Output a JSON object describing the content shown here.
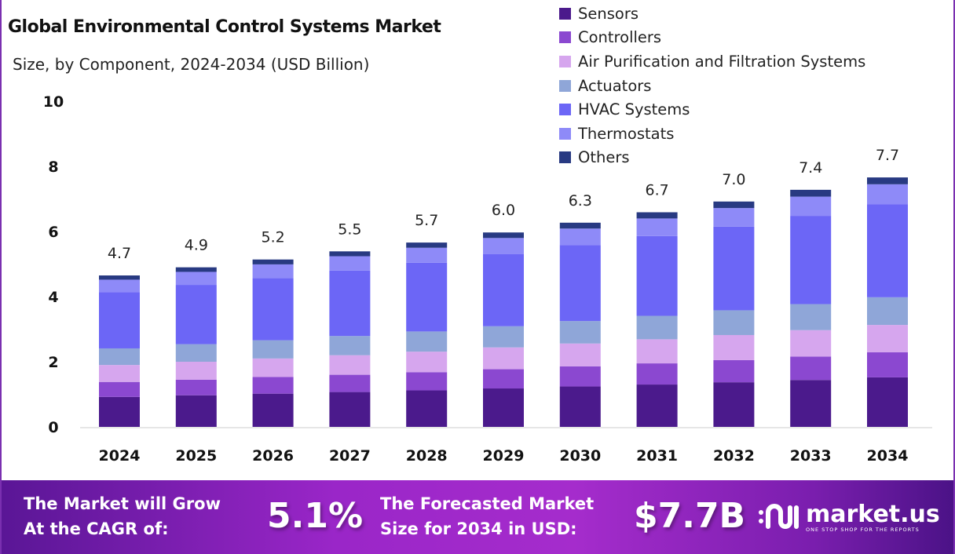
{
  "chart_data": {
    "type": "bar",
    "stacked": true,
    "title": "Global Environmental Control Systems Market",
    "subtitle": "Size, by Component, 2024-2034 (USD Billion)",
    "xlabel": "",
    "ylabel": "",
    "ylim": [
      0,
      10
    ],
    "yticks": [
      0,
      2,
      4,
      6,
      8,
      10
    ],
    "grid": false,
    "legend_position": "top-right",
    "categories": [
      "2024",
      "2025",
      "2026",
      "2027",
      "2028",
      "2029",
      "2030",
      "2031",
      "2032",
      "2033",
      "2034"
    ],
    "totals": [
      "4.7",
      "4.9",
      "5.2",
      "5.5",
      "5.7",
      "6.0",
      "6.3",
      "6.7",
      "7.0",
      "7.4",
      "7.7"
    ],
    "series": [
      {
        "name": "Sensors",
        "color": "#4b1a8c",
        "values": [
          0.92,
          0.97,
          1.02,
          1.07,
          1.12,
          1.18,
          1.24,
          1.3,
          1.37,
          1.44,
          1.52
        ]
      },
      {
        "name": "Controllers",
        "color": "#8b48d0",
        "values": [
          0.46,
          0.48,
          0.51,
          0.53,
          0.56,
          0.59,
          0.62,
          0.65,
          0.68,
          0.72,
          0.77
        ]
      },
      {
        "name": "Air Purification and Filtration Systems",
        "color": "#d6a6ee",
        "values": [
          0.52,
          0.55,
          0.57,
          0.6,
          0.63,
          0.67,
          0.7,
          0.74,
          0.77,
          0.81,
          0.84
        ]
      },
      {
        "name": "Actuators",
        "color": "#8fa6d8",
        "values": [
          0.51,
          0.54,
          0.56,
          0.59,
          0.62,
          0.65,
          0.69,
          0.72,
          0.76,
          0.8,
          0.85
        ]
      },
      {
        "name": "HVAC Systems",
        "color": "#6c66f6",
        "values": [
          1.73,
          1.82,
          1.91,
          2.01,
          2.11,
          2.22,
          2.33,
          2.45,
          2.57,
          2.71,
          2.86
        ]
      },
      {
        "name": "Thermostats",
        "color": "#8e8af8",
        "values": [
          0.38,
          0.4,
          0.42,
          0.44,
          0.46,
          0.49,
          0.51,
          0.54,
          0.57,
          0.59,
          0.61
        ]
      },
      {
        "name": "Others",
        "color": "#283a82",
        "values": [
          0.13,
          0.14,
          0.15,
          0.15,
          0.16,
          0.17,
          0.18,
          0.19,
          0.2,
          0.21,
          0.21
        ]
      }
    ]
  },
  "banner": {
    "cagr_label_1": "The Market will Grow",
    "cagr_label_2": "At the CAGR of:",
    "cagr_value": "5.1%",
    "forecast_label_1": "The Forecasted Market",
    "forecast_label_2": "Size for 2034 in USD:",
    "forecast_value": "$7.7B",
    "logo_name": "market.us",
    "logo_tagline": "ONE STOP SHOP FOR THE REPORTS"
  }
}
